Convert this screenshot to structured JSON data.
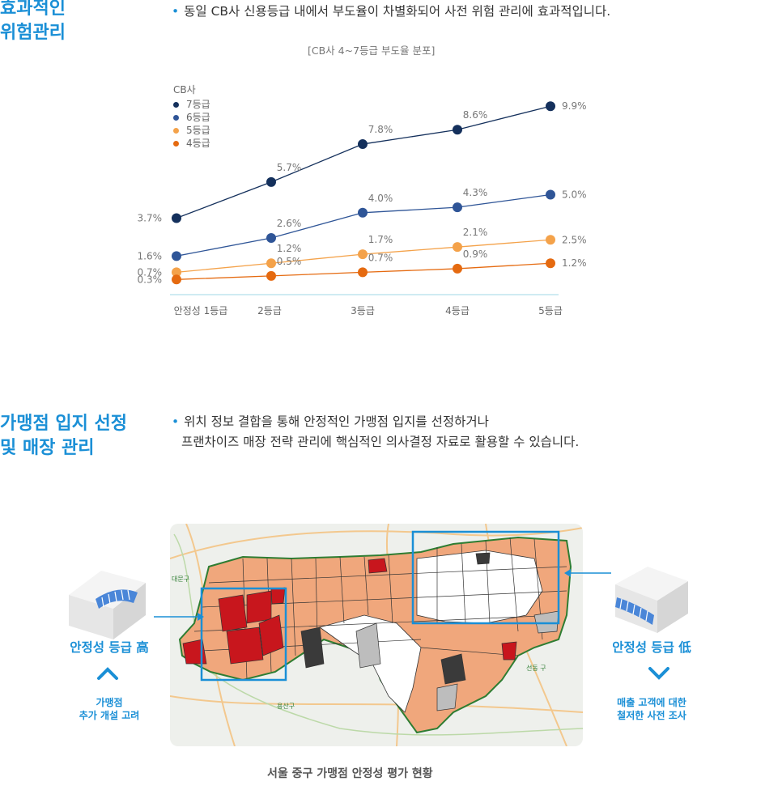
{
  "section1": {
    "title_line1": "효과적인",
    "title_line2": "위험관리",
    "bullet": "동일 CB사 신용등급 내에서 부도율이 차별화되어 사전 위험 관리에 효과적입니다."
  },
  "chart": {
    "caption": "[CB사 4~7등급 부도율 분포]",
    "legend_title": "CB사"
  },
  "chart_data": {
    "type": "line",
    "categories": [
      "안정성 1등급",
      "2등급",
      "3등급",
      "4등급",
      "5등급"
    ],
    "series": [
      {
        "name": "7등급",
        "color": "#14305c",
        "values": [
          3.7,
          5.7,
          7.8,
          8.6,
          9.9
        ]
      },
      {
        "name": "6등급",
        "color": "#2f5597",
        "values": [
          1.6,
          2.6,
          4.0,
          4.3,
          5.0
        ]
      },
      {
        "name": "5등급",
        "color": "#f4a24a",
        "values": [
          0.7,
          1.2,
          1.7,
          2.1,
          2.5
        ]
      },
      {
        "name": "4등급",
        "color": "#e56a10",
        "values": [
          0.3,
          0.5,
          0.7,
          0.9,
          1.2
        ]
      }
    ],
    "grid": false,
    "legend_placement": "top-left"
  },
  "section2": {
    "title_line1": "가맹점 입지 선정",
    "title_line2": "및 매장 관리",
    "bullet_line1": "위치 정보 결합을 통해 안정적인 가맹점 입지를 선정하거나",
    "bullet_line2": "프랜차이즈 매장 전략 관리에 핵심적인 의사결정 자료로 활용할 수 있습니다."
  },
  "map": {
    "left_label": "안정성 등급 高",
    "left_sub1": "가맹점",
    "left_sub2": "추가 개설 고려",
    "right_label": "안정성 등급 低",
    "right_sub1": "매출 고객에 대한",
    "right_sub2": "철저한 사전 조사",
    "place_daehyeon": "대문구",
    "place_yongsan": "용산구",
    "place_seongdong": "선동 구",
    "caption": "서울 중구 가맹점 안정성 평가 현황"
  },
  "colors": {
    "accent": "#1a8fd6",
    "high_risk": "#c8161d",
    "mid": "#f0a77c",
    "gray": "#bdbdbd",
    "dark": "#3a3a3a"
  }
}
